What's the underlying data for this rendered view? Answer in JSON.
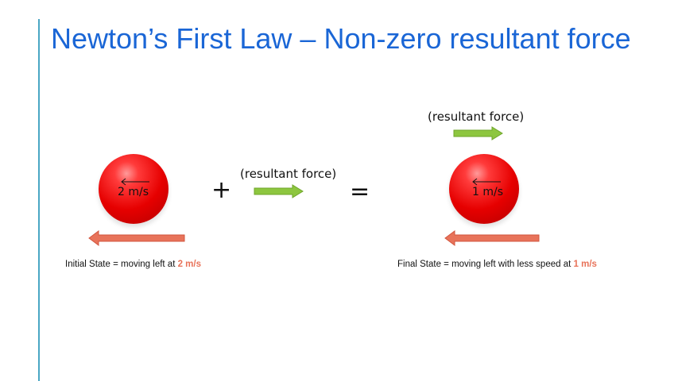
{
  "slide": {
    "title": "Newton’s First  Law –  Non-zero resultant force",
    "force_label_middle": "(resultant force)",
    "force_label_right": "(resultant force)",
    "plus": "+",
    "equals": "=",
    "initial_speed": "2 m/s",
    "final_speed": "1 m/s",
    "initial_caption_text": "Initial State = moving left at ",
    "initial_caption_value": "2 m/s",
    "final_caption_text": "Final State = moving left with less speed at ",
    "final_caption_value": "1 m/s"
  },
  "colors": {
    "title": "#1a66d6",
    "force_arrow": "#8dc63f",
    "velocity_arrow": "#e8735a",
    "ball": "#e60000",
    "highlight": "#e8735a"
  }
}
